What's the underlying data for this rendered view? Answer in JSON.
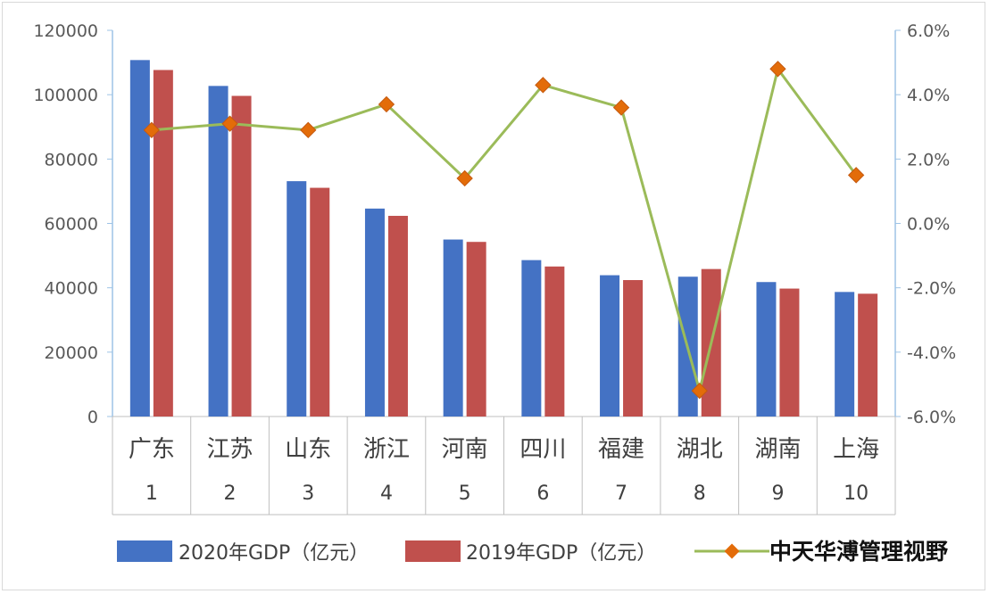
{
  "chart_data": {
    "type": "bar",
    "categories": [
      "广东",
      "江苏",
      "山东",
      "浙江",
      "河南",
      "四川",
      "福建",
      "湖北",
      "湖南",
      "上海"
    ],
    "ranks": [
      "1",
      "2",
      "3",
      "4",
      "5",
      "6",
      "7",
      "8",
      "9",
      "10"
    ],
    "series": [
      {
        "name": "2020年GDP（亿元）",
        "type": "bar",
        "axis": "left",
        "color": "#4472c4",
        "values": [
          110761,
          102719,
          73129,
          64613,
          54997,
          48599,
          43904,
          43443,
          41782,
          38701
        ]
      },
      {
        "name": "2019年GDP（亿元）",
        "type": "bar",
        "axis": "left",
        "color": "#c0504d",
        "values": [
          107671,
          99631,
          71068,
          62352,
          54259,
          46616,
          42395,
          45828,
          39752,
          38155
        ]
      },
      {
        "name": "",
        "type": "line",
        "axis": "right",
        "color": "#9bbb59",
        "marker_color": "#e36c09",
        "values": [
          2.9,
          3.1,
          2.9,
          3.7,
          1.4,
          4.3,
          3.6,
          -5.2,
          4.8,
          1.5
        ]
      }
    ],
    "y_left": {
      "min": 0,
      "max": 120000,
      "ticks": [
        "0",
        "20000",
        "40000",
        "60000",
        "80000",
        "100000",
        "120000"
      ]
    },
    "y_right": {
      "min": -6,
      "max": 6,
      "ticks": [
        "-6.0%",
        "-4.0%",
        "-2.0%",
        "0.0%",
        "2.0%",
        "4.0%",
        "6.0%"
      ]
    },
    "grid": false,
    "legend_position": "bottom"
  },
  "watermark": "中天华溥管理视野"
}
